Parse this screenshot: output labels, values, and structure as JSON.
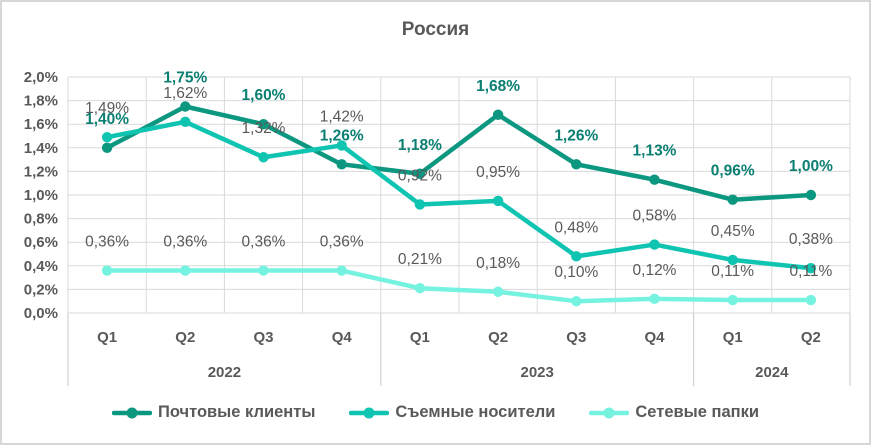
{
  "chart_data": {
    "type": "line",
    "title": "Россия",
    "x_categories": [
      "Q1",
      "Q2",
      "Q3",
      "Q4",
      "Q1",
      "Q2",
      "Q3",
      "Q4",
      "Q1",
      "Q2"
    ],
    "year_groups": [
      {
        "label": "2022",
        "count": 4
      },
      {
        "label": "2023",
        "count": 4
      },
      {
        "label": "2024",
        "count": 2
      }
    ],
    "y_ticks": [
      "0,0%",
      "0,2%",
      "0,4%",
      "0,6%",
      "0,8%",
      "1,0%",
      "1,2%",
      "1,4%",
      "1,6%",
      "1,8%",
      "2,0%"
    ],
    "ylim": [
      0,
      2.0
    ],
    "grid": true,
    "legend_position": "bottom",
    "series": [
      {
        "name": "Почтовые клиенты",
        "color": "#0C9780",
        "label_color": "#0A7F72",
        "bold_labels": true,
        "values": [
          1.4,
          1.75,
          1.6,
          1.26,
          1.18,
          1.68,
          1.26,
          1.13,
          0.96,
          1.0
        ],
        "labels": [
          "1,40%",
          "1,75%",
          "1,60%",
          "1,26%",
          "1,18%",
          "1,68%",
          "1,26%",
          "1,13%",
          "0,96%",
          "1,00%"
        ]
      },
      {
        "name": "Съемные носители",
        "color": "#0FC4B0",
        "label_color": "#595959",
        "bold_labels": false,
        "values": [
          1.49,
          1.62,
          1.32,
          1.42,
          0.92,
          0.95,
          0.48,
          0.58,
          0.45,
          0.38
        ],
        "labels": [
          "1,49%",
          "1,62%",
          "1,32%",
          "1,42%",
          "0,92%",
          "0,95%",
          "0,48%",
          "0,58%",
          "0,45%",
          "0,38%"
        ]
      },
      {
        "name": "Сетевые папки",
        "color": "#76F2E0",
        "label_color": "#595959",
        "bold_labels": false,
        "values": [
          0.36,
          0.36,
          0.36,
          0.36,
          0.21,
          0.18,
          0.1,
          0.12,
          0.11,
          0.11
        ],
        "labels": [
          "0,36%",
          "0,36%",
          "0,36%",
          "0,36%",
          "0,21%",
          "0,18%",
          "0,10%",
          "0,12%",
          "0,11%",
          "0,11%"
        ]
      }
    ],
    "style": {
      "grid_color": "#D9D9D9",
      "separator_color": "#C9C9C9",
      "axis_text_color": "#595959",
      "title_color": "#595959"
    }
  }
}
